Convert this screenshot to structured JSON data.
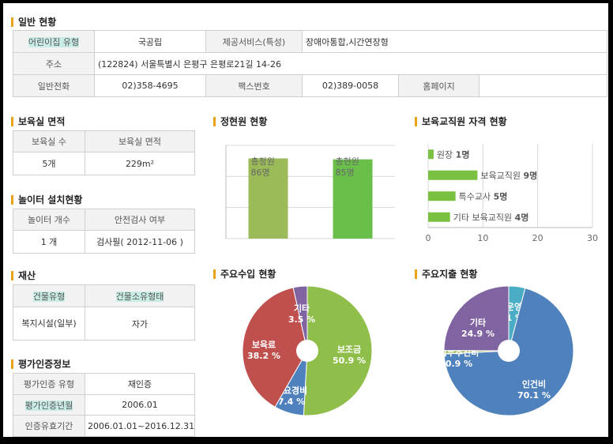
{
  "general": {
    "title": "일반 현황",
    "type_label": "어린이집 유형",
    "type_value": "국공립",
    "service_label": "제공서비스(특성)",
    "service_value": "장애아통합,시간연장형",
    "address_label": "주소",
    "address_value": "(122824) 서울특별시 은평구 은평로21길 14-26",
    "phone_label": "일반전화",
    "phone_value": "02)358-4695",
    "fax_label": "팩스번호",
    "fax_value": "02)389-0058",
    "homepage_label": "홈페이지",
    "homepage_value": ""
  },
  "room": {
    "title": "보육실 면적",
    "col1": "보육실 수",
    "col2": "보육실 면적",
    "count": "5개",
    "area": "229m²"
  },
  "playground": {
    "title": "놀이터 설치현황",
    "col1": "놀이터 개수",
    "col2": "안전검사 여부",
    "count": "1 개",
    "inspection": "검사필( 2012-11-06 )"
  },
  "property": {
    "title": "재산",
    "col1": "건물유형",
    "col2": "건물소유형태",
    "building_type": "복지시설(일부)",
    "ownership": "자가"
  },
  "certification": {
    "title": "평가인증정보",
    "type_label": "평가인증 유형",
    "type_value": "재인증",
    "year_label": "평가인증년월",
    "year_value": "2006.01",
    "period_label": "인증유효기간",
    "period_value": "2006.01.01~2016.12.31"
  },
  "enrollment": {
    "title": "정현원 현황"
  },
  "staff": {
    "title": "보육교직원 자격 현황"
  },
  "income": {
    "title": "주요수입 현황"
  },
  "expense": {
    "title": "주요지출 현황"
  },
  "chart_data": [
    {
      "type": "bar",
      "categories": [
        "총정원",
        "총현원"
      ],
      "values": [
        86,
        85
      ],
      "value_labels": [
        "86명",
        "85명"
      ],
      "colors": [
        "#9bbb59",
        "#6abf4b"
      ],
      "grid": true
    },
    {
      "type": "bar",
      "orientation": "horizontal",
      "categories": [
        "원장",
        "보육교직원",
        "특수교사",
        "기타 보육교직원"
      ],
      "values": [
        1,
        9,
        5,
        4
      ],
      "value_labels": [
        "1명",
        "9명",
        "5명",
        "4명"
      ],
      "xlim": [
        0,
        30
      ],
      "xticks": [
        0,
        10,
        20,
        30
      ],
      "color": "#7ac142",
      "grid": true
    },
    {
      "type": "pie",
      "slices": [
        {
          "label": "보조금",
          "value": 50.9,
          "value_label": "50.9 %",
          "color": "#8fbf4a"
        },
        {
          "label": "필요경비",
          "value": 7.4,
          "value_label": "7.4 %",
          "color": "#4f81bd"
        },
        {
          "label": "보육료",
          "value": 38.2,
          "value_label": "38.2 %",
          "color": "#c0504d"
        },
        {
          "label": "기타",
          "value": 3.5,
          "value_label": "3.5 %",
          "color": "#8064a2"
        }
      ]
    },
    {
      "type": "pie",
      "slices": [
        {
          "label": "관리운영비",
          "value": 4.1,
          "value_label": "4.1 %",
          "color": "#4bacc6"
        },
        {
          "label": "인건비",
          "value": 70.1,
          "value_label": "70.1 %",
          "color": "#4f81bd"
        },
        {
          "label": "업무추진비",
          "value": 0.9,
          "value_label": "0.9 %",
          "color": "#9bbb59"
        },
        {
          "label": "기타",
          "value": 24.9,
          "value_label": "24.9 %",
          "color": "#8064a2"
        }
      ]
    }
  ]
}
